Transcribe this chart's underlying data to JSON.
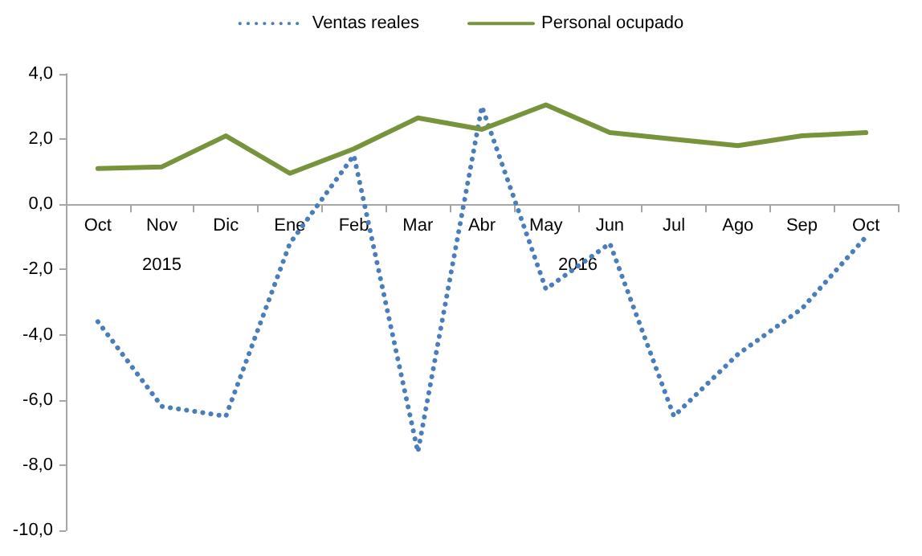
{
  "chart_data": {
    "type": "line",
    "categories": [
      "Oct",
      "Nov",
      "Dic",
      "Ene",
      "Feb",
      "Mar",
      "Abr",
      "May",
      "Jun",
      "Jul",
      "Ago",
      "Sep",
      "Oct"
    ],
    "series": [
      {
        "name": "Ventas reales",
        "color": "#4a7ebb",
        "line_style": "dotted",
        "values": [
          -3.6,
          -6.2,
          -6.5,
          -1.2,
          1.5,
          -7.6,
          3.0,
          -2.6,
          -1.2,
          -6.5,
          -4.6,
          -3.2,
          -1.0
        ]
      },
      {
        "name": "Personal ocupado",
        "color": "#77933c",
        "line_style": "solid",
        "values": [
          1.1,
          1.15,
          2.1,
          0.95,
          1.7,
          2.65,
          2.3,
          3.05,
          2.2,
          2.0,
          1.8,
          2.1,
          2.2
        ]
      }
    ],
    "ylim": [
      -10,
      4
    ],
    "yticks": [
      {
        "value": -10,
        "label": "-10,0"
      },
      {
        "value": -8,
        "label": "-8,0"
      },
      {
        "value": -6,
        "label": "-6,0"
      },
      {
        "value": -4,
        "label": "-4,0"
      },
      {
        "value": -2,
        "label": "-2,0"
      },
      {
        "value": 0,
        "label": "0,0"
      },
      {
        "value": 2,
        "label": "2,0"
      },
      {
        "value": 4,
        "label": "4,0"
      }
    ],
    "annotations": [
      "2015",
      "2016"
    ],
    "legend": "top",
    "marker": "none",
    "grid": false
  }
}
